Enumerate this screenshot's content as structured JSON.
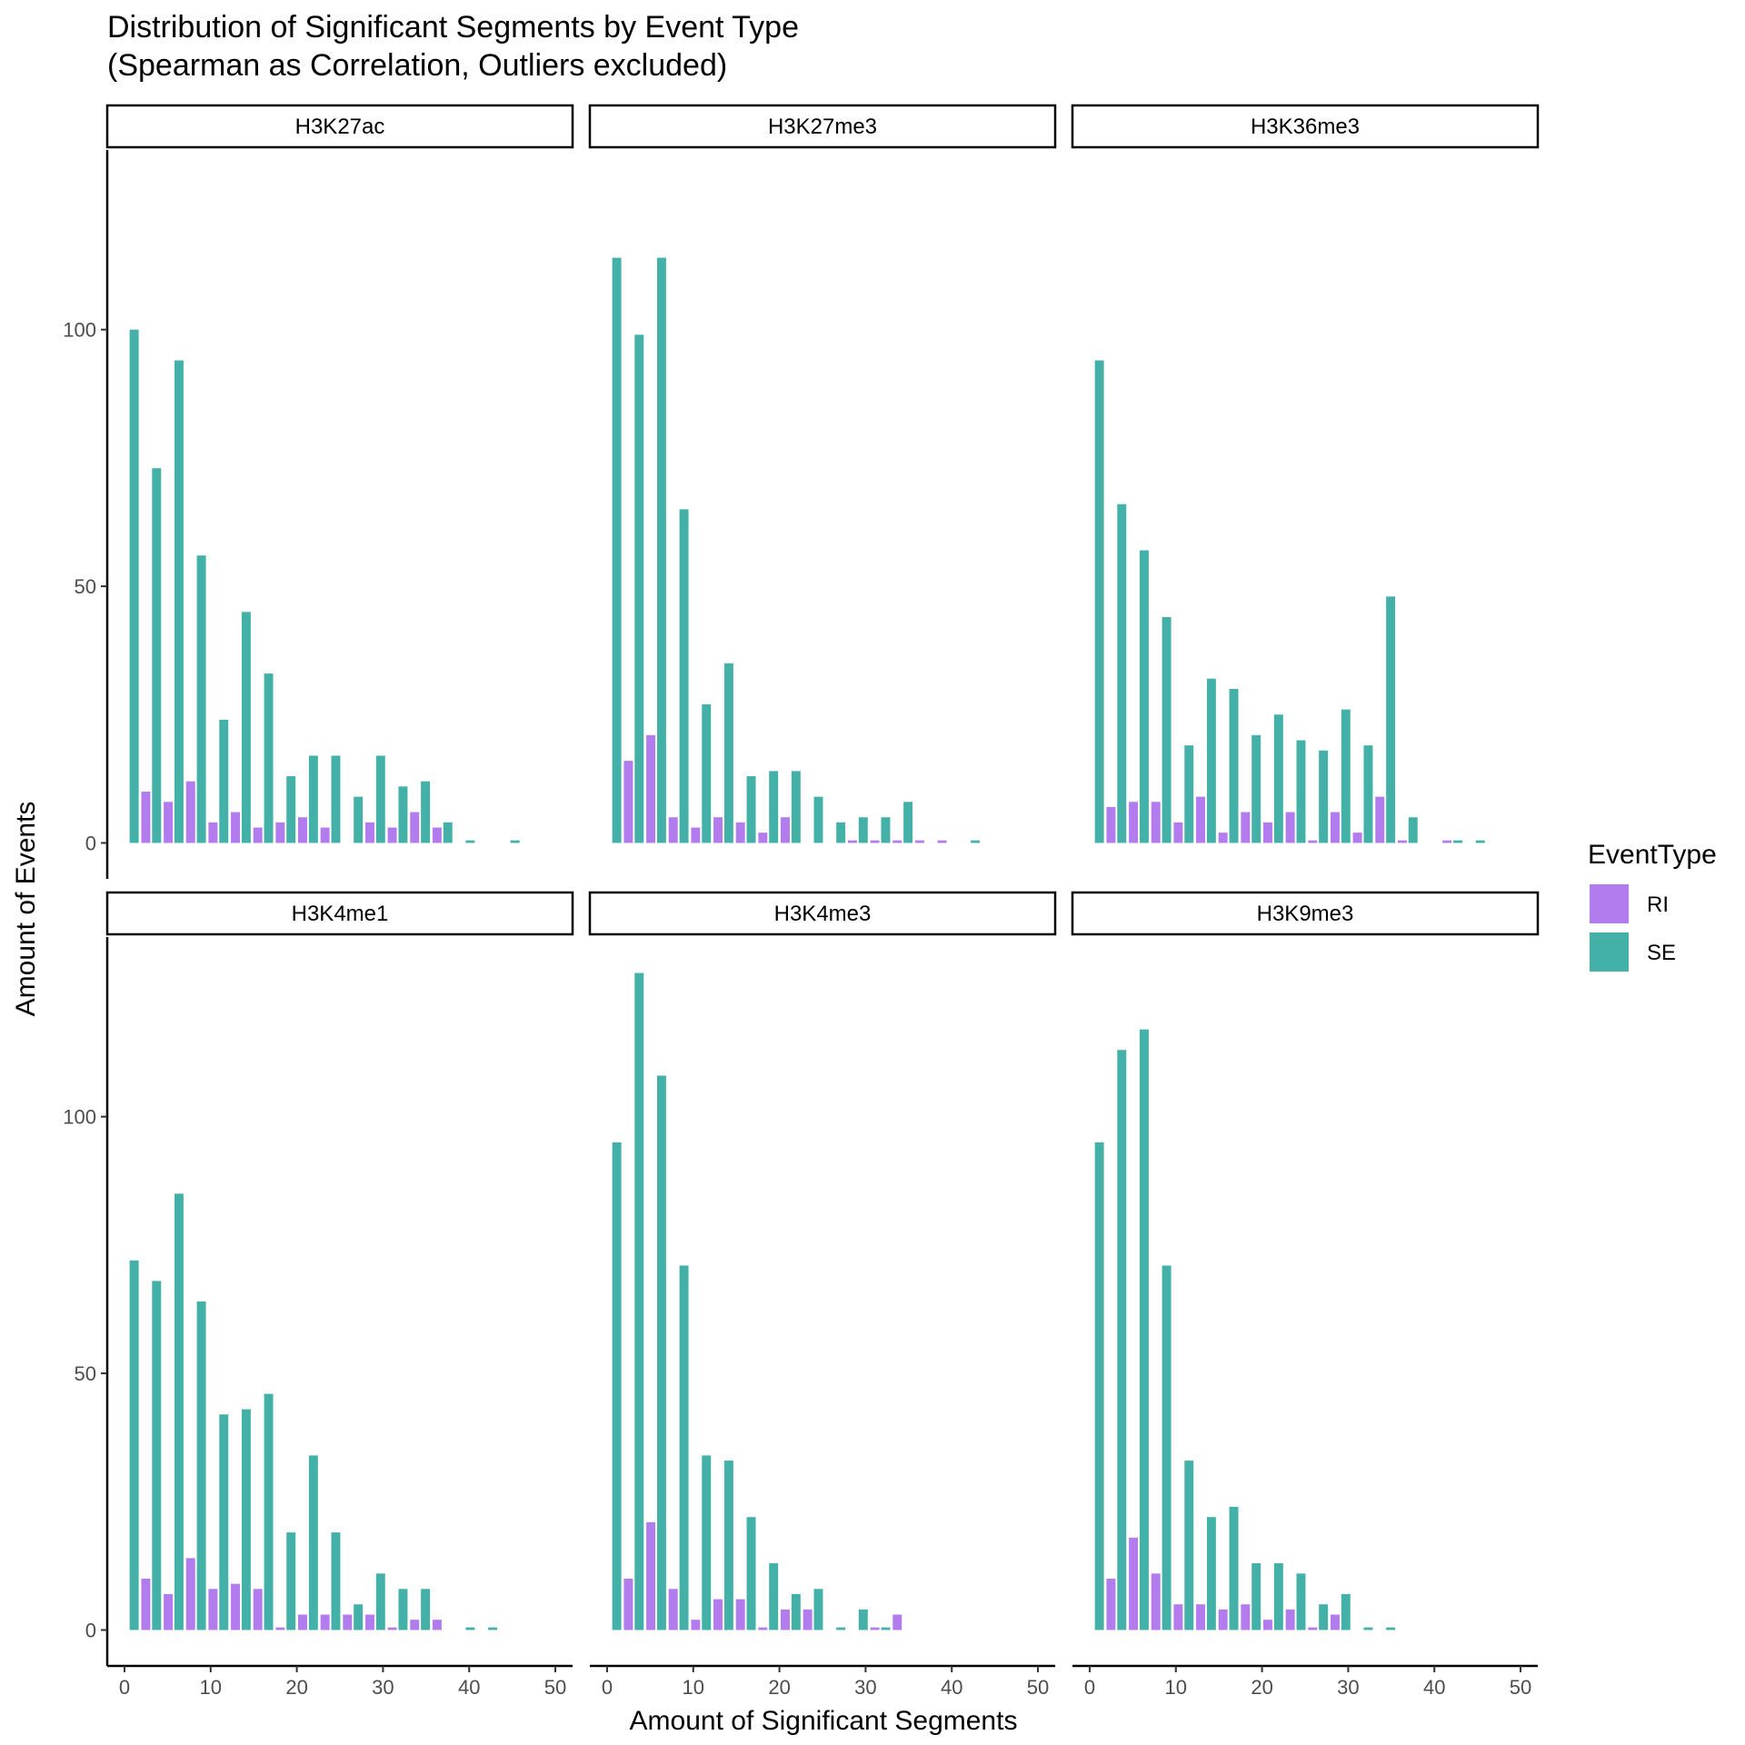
{
  "chart_data": {
    "type": "bar",
    "title": "Distribution of Significant Segments by Event Type",
    "subtitle": "(Spearman as Correlation, Outliers excluded)",
    "xlabel": "Amount of Significant Segments",
    "ylabel": "Amount of Events",
    "xlim": [
      -2,
      52
    ],
    "ylim": [
      -7,
      135
    ],
    "x_ticks": [
      0,
      10,
      20,
      30,
      40,
      50
    ],
    "y_ticks": [
      0,
      50,
      100
    ],
    "grid": false,
    "legend": {
      "title": "EventType",
      "position": "right",
      "entries": [
        "RI",
        "SE"
      ]
    },
    "colors": {
      "RI": "#b27bee",
      "SE": "#44b1a9"
    },
    "bins": [
      0.5,
      3.1,
      5.7,
      8.3,
      10.9,
      13.5,
      16.1,
      18.7,
      21.3,
      23.9,
      26.5,
      29.1,
      31.7,
      34.3,
      36.9,
      39.5,
      42.1,
      44.7,
      47.3
    ],
    "panels": [
      {
        "name": "H3K27ac",
        "RI": [
          0,
          10,
          8,
          12,
          4,
          6,
          3,
          4,
          5,
          3,
          0,
          4,
          3,
          6,
          3,
          0,
          0,
          0,
          0
        ],
        "SE": [
          100,
          73,
          94,
          56,
          24,
          45,
          33,
          13,
          17,
          17,
          9,
          17,
          11,
          12,
          4,
          0.5,
          0,
          0.5,
          0
        ]
      },
      {
        "name": "H3K27me3",
        "RI": [
          0,
          16,
          21,
          5,
          3,
          5,
          4,
          2,
          5,
          0,
          0,
          0.5,
          0.5,
          0.5,
          0.5,
          0.5,
          0,
          0,
          0
        ],
        "SE": [
          114,
          99,
          114,
          65,
          27,
          35,
          13,
          14,
          14,
          9,
          4,
          5,
          5,
          8,
          0,
          0,
          0.5,
          0,
          0
        ]
      },
      {
        "name": "H3K36me3",
        "RI": [
          0,
          7,
          8,
          8,
          4,
          9,
          2,
          6,
          4,
          6,
          0.5,
          6,
          2,
          9,
          0.5,
          0,
          0.5,
          0,
          0
        ],
        "SE": [
          94,
          66,
          57,
          44,
          19,
          32,
          30,
          21,
          25,
          20,
          18,
          26,
          19,
          48,
          5,
          0,
          0.5,
          0.5,
          0
        ]
      },
      {
        "name": "H3K4me1",
        "RI": [
          0,
          10,
          7,
          14,
          8,
          9,
          8,
          0.5,
          3,
          3,
          3,
          3,
          0.5,
          2,
          2,
          0,
          0,
          0,
          0
        ],
        "SE": [
          72,
          68,
          85,
          64,
          42,
          43,
          46,
          19,
          34,
          19,
          5,
          11,
          8,
          8,
          0,
          0.5,
          0.5,
          0,
          0
        ]
      },
      {
        "name": "H3K4me3",
        "RI": [
          0,
          10,
          21,
          8,
          2,
          6,
          6,
          0.5,
          4,
          4,
          0,
          0,
          0.5,
          3,
          0,
          0,
          0,
          0,
          0
        ],
        "SE": [
          95,
          128,
          108,
          71,
          34,
          33,
          22,
          13,
          7,
          8,
          0.5,
          4,
          0.5,
          0,
          0,
          0,
          0,
          0,
          0
        ]
      },
      {
        "name": "H3K9me3",
        "RI": [
          0,
          10,
          18,
          11,
          5,
          5,
          4,
          5,
          2,
          4,
          0.5,
          3,
          0,
          0,
          0,
          0,
          0,
          0,
          0
        ],
        "SE": [
          95,
          113,
          117,
          71,
          33,
          22,
          24,
          13,
          13,
          11,
          5,
          7,
          0.5,
          0.5,
          0,
          0,
          0,
          0,
          0
        ]
      }
    ]
  }
}
